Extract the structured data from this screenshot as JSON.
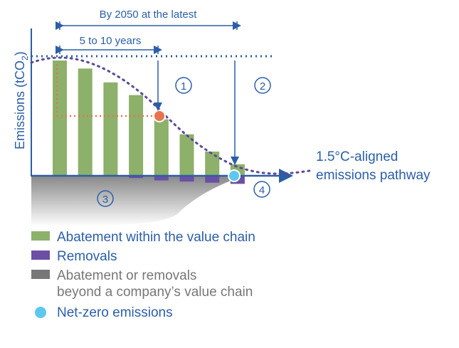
{
  "diagram": {
    "y_axis_label": "Emissions (tCO",
    "y_axis_label_sub": "2",
    "y_axis_label_close": ")",
    "span_long": "By 2050 at the latest",
    "span_short": "5 to 10 years",
    "pathway_label_line1": "1.5°C-aligned",
    "pathway_label_line2": "emissions pathway",
    "markers": [
      "1",
      "2",
      "3",
      "4"
    ]
  },
  "chart_data": {
    "type": "bar",
    "series": [
      {
        "name": "Abatement within the value chain",
        "values": [
          1.0,
          0.93,
          0.81,
          0.7,
          0.49,
          0.36,
          0.21,
          0.1
        ]
      },
      {
        "name": "Removals",
        "values": [
          0,
          0,
          0,
          0.02,
          0.04,
          0.05,
          0.06,
          0.07
        ]
      }
    ],
    "baseline": 1.0,
    "pathway": [
      1.0,
      0.95,
      0.85,
      0.7,
      0.52,
      0.33,
      0.18,
      0.07,
      0.0
    ],
    "colors": {
      "abatement": "#8db06a",
      "removals": "#6a4fa5",
      "beyond": "#777777",
      "net_zero": "#5cc8ef",
      "intermediate": "#e8724f",
      "text": "#2b5ea7"
    }
  },
  "legend": {
    "items": [
      {
        "label": "Abatement within the value chain",
        "color": "#8db06a",
        "text_color": "#2b5ea7",
        "shape": "rect"
      },
      {
        "label": "Removals",
        "color": "#6a4fa5",
        "text_color": "#2b5ea7",
        "shape": "rect"
      },
      {
        "label": "Abatement or removals",
        "label2": "beyond a company’s value chain",
        "color": "#777777",
        "text_color": "#777777",
        "shape": "rect"
      },
      {
        "label": "Net-zero emissions",
        "color": "#5cc8ef",
        "text_color": "#2b5ea7",
        "shape": "circle"
      }
    ]
  }
}
